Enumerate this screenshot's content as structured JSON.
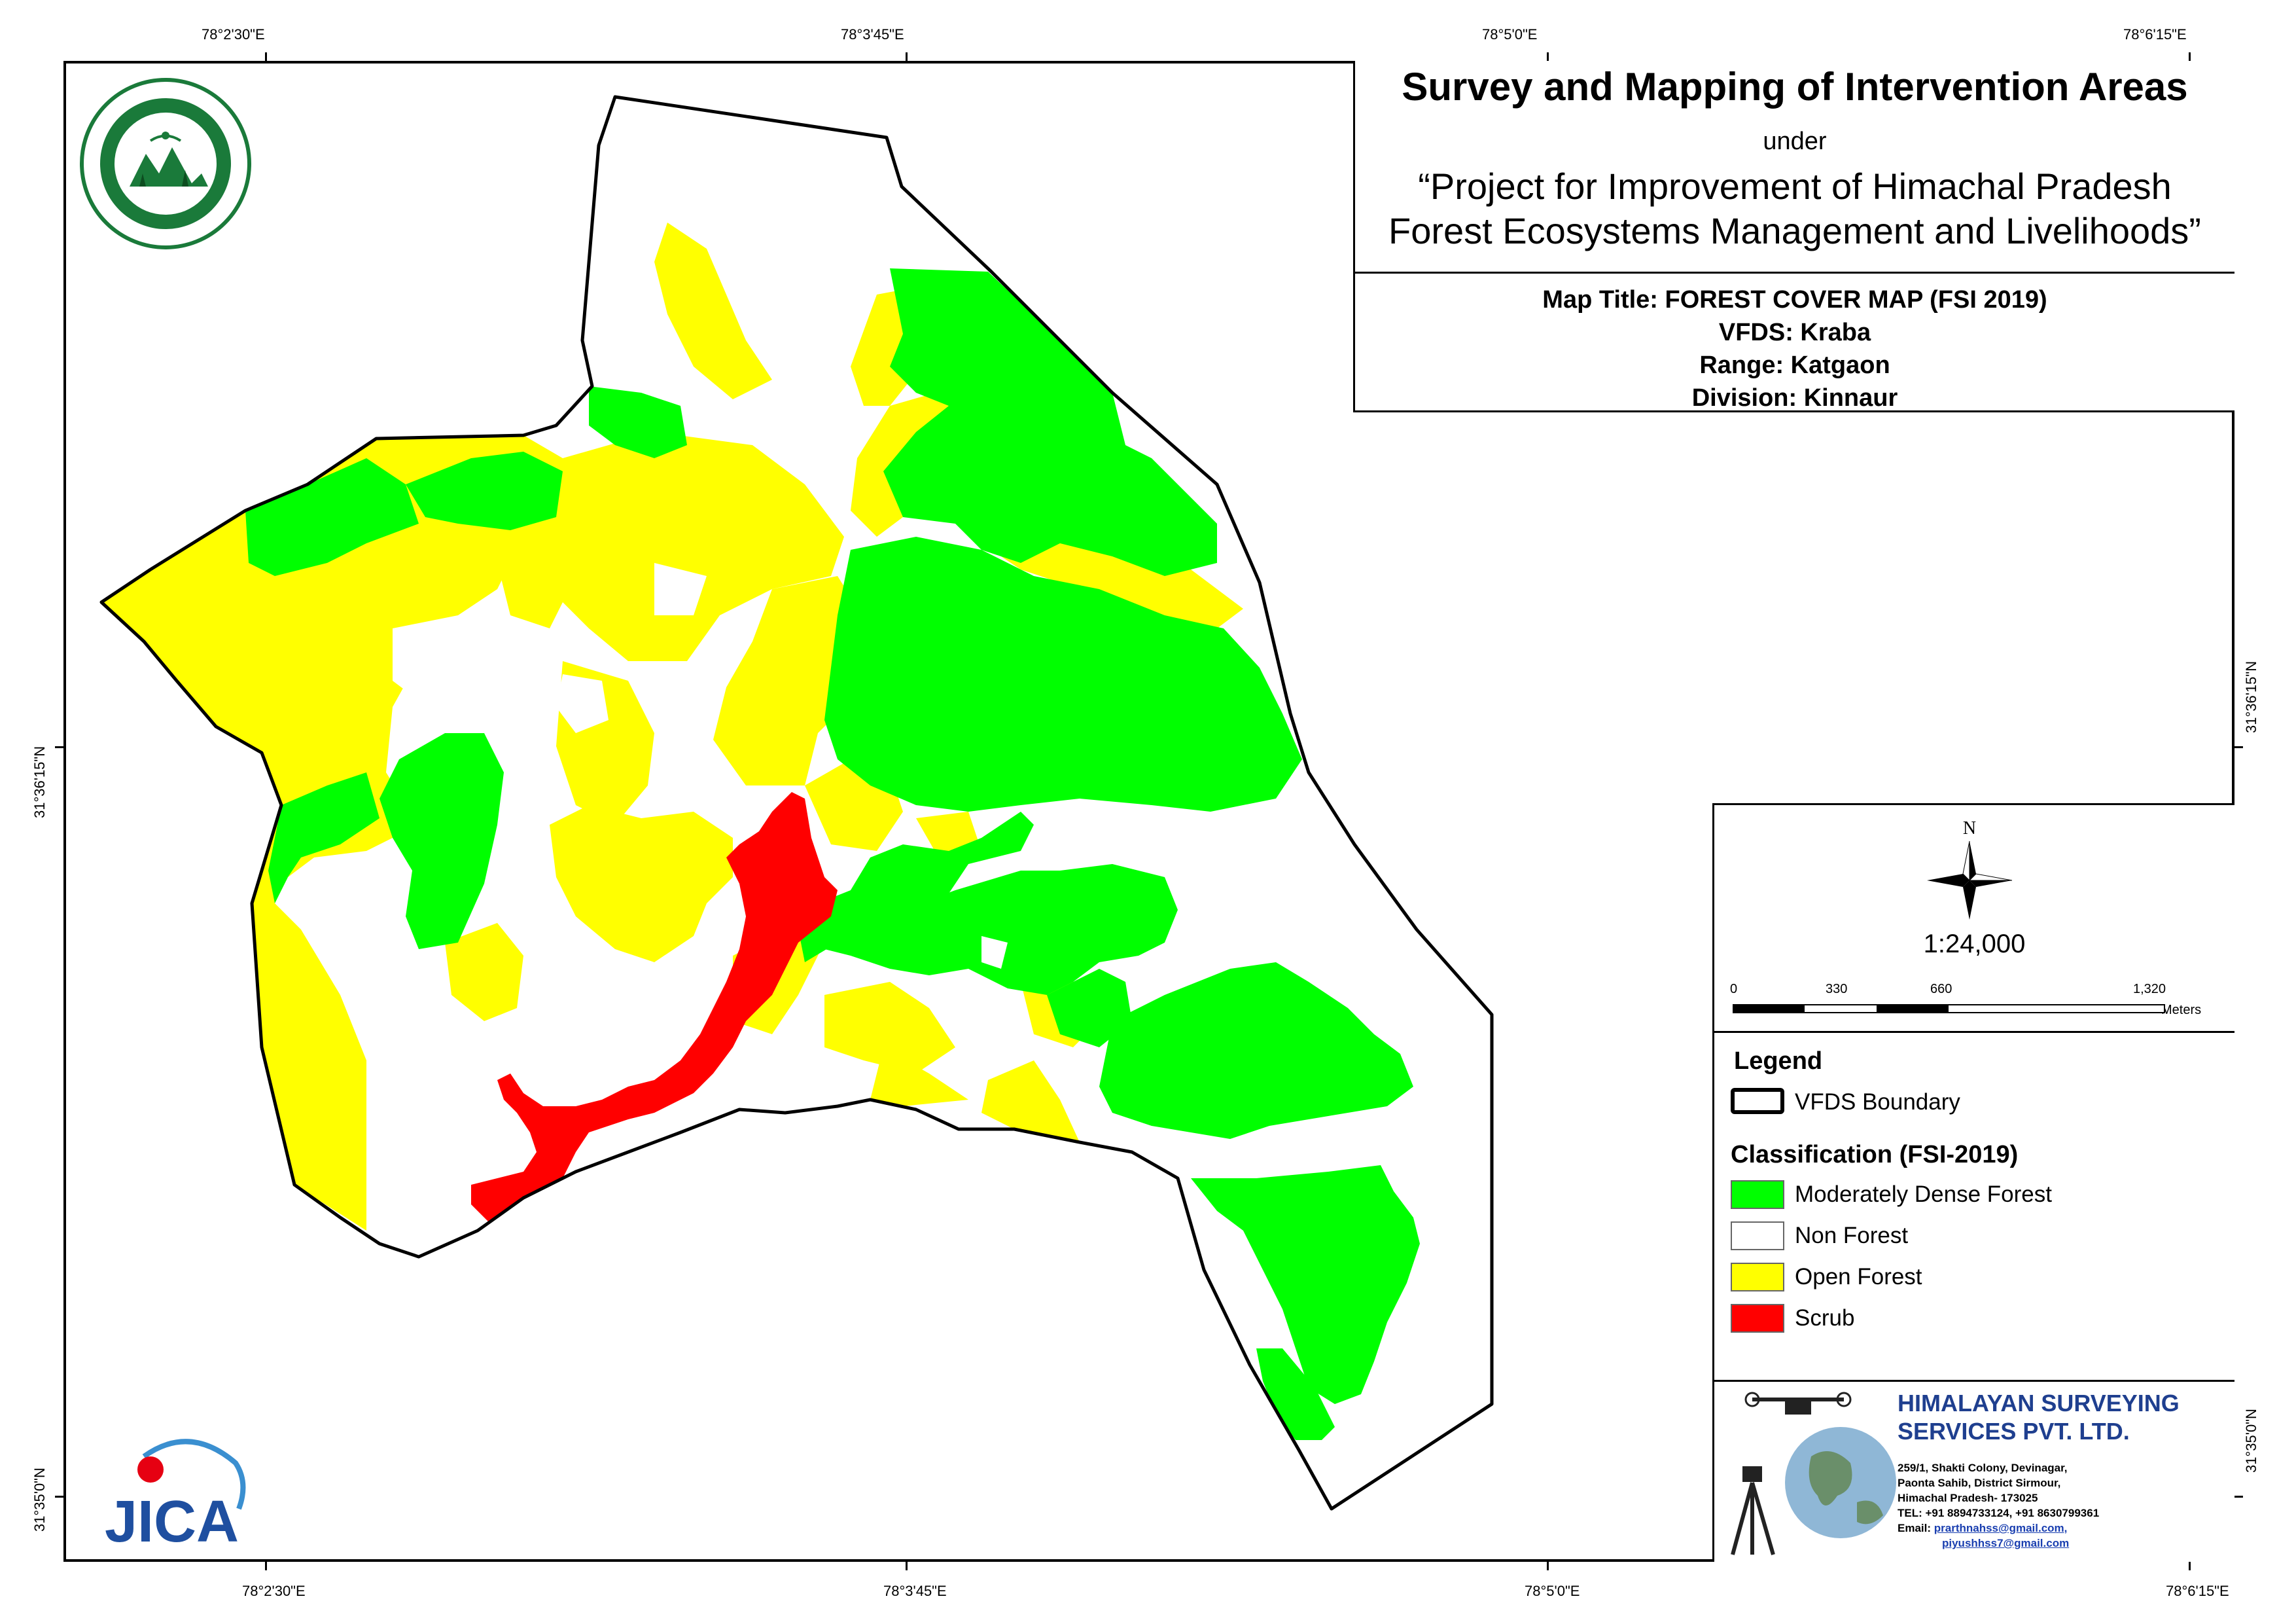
{
  "graticule": {
    "top": [
      "78°2'30\"E",
      "78°3'45\"E",
      "78°5'0\"E",
      "78°6'15\"E"
    ],
    "bottom": [
      "78°2'30\"E",
      "78°3'45\"E",
      "78°5'0\"E",
      "78°6'15\"E"
    ],
    "left": [
      "31°36'15\"N",
      "31°35'0\"N"
    ],
    "right": [
      "31°36'15\"N",
      "31°35'0\"N"
    ]
  },
  "title_block": {
    "main_title": "Survey and Mapping of Intervention Areas",
    "under": "under",
    "project_line1": "“Project for Improvement of Himachal Pradesh",
    "project_line2": "Forest Ecosystems Management and Livelihoods”",
    "map_title": "Map Title: FOREST COVER MAP (FSI 2019)",
    "vfds": "VFDS: Kraba",
    "range": "Range: Katgaon",
    "division": "Division: Kinnaur"
  },
  "north_arrow": {
    "label": "N"
  },
  "scale": {
    "ratio": "1:24,000",
    "ticks": [
      "0",
      "330",
      "660",
      "1,320"
    ],
    "unit": "Meters"
  },
  "legend": {
    "title": "Legend",
    "boundary_label": "VFDS Boundary",
    "classification_title": "Classification (FSI-2019)",
    "classes": [
      {
        "label": "Moderately Dense Forest",
        "color": "#00ff00"
      },
      {
        "label": "Non Forest",
        "color": "#ffffff"
      },
      {
        "label": "Open Forest",
        "color": "#ffff00"
      },
      {
        "label": "Scrub",
        "color": "#ff0000"
      }
    ]
  },
  "company": {
    "name_line1": "HIMALAYAN SURVEYING",
    "name_line2": "SERVICES PVT. LTD.",
    "address1": "259/1, Shakti Colony, Devinagar,",
    "address2": "Paonta Sahib, District Sirmour,",
    "address3": "Himachal Pradesh- 173025",
    "phone": "TEL: +91 8894733124, +91 8630799361",
    "email_label": "Email:",
    "email1": "prarthnahss@gmail.com,",
    "email2": "piyushhss7@gmail.com"
  },
  "logos": {
    "hp_forest_seal": "Himachal Pradesh Forest Department seal",
    "jica": "JICA"
  }
}
